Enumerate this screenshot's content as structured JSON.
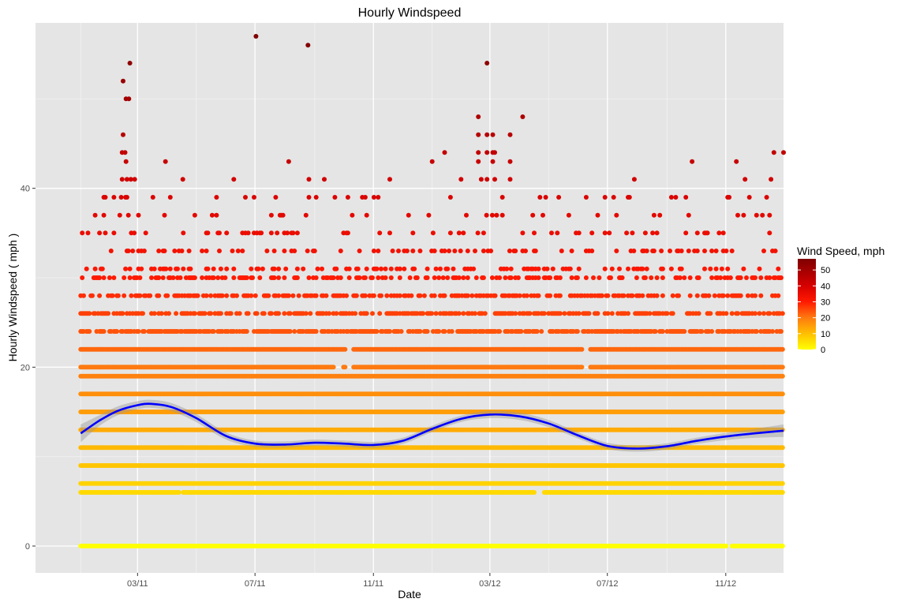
{
  "chart_data": {
    "type": "scatter",
    "title": "Hourly Windspeed",
    "xlabel": "Date",
    "ylabel": "Hourly Windspeed ( mph )",
    "x_range": [
      "2010-11-15",
      "2012-12-31"
    ],
    "ylim": [
      -3,
      58.5
    ],
    "x_ticks": [
      {
        "date": "2011-03-01",
        "label": "03/11"
      },
      {
        "date": "2011-07-01",
        "label": "07/11"
      },
      {
        "date": "2011-11-01",
        "label": "11/11"
      },
      {
        "date": "2012-03-01",
        "label": "03/12"
      },
      {
        "date": "2012-07-01",
        "label": "07/12"
      },
      {
        "date": "2012-11-01",
        "label": "11/12"
      }
    ],
    "x_minor_ticks": [
      "2011-01-01",
      "2011-05-01",
      "2011-09-01",
      "2012-01-01",
      "2012-05-01",
      "2012-09-01"
    ],
    "x_start_date": "2011-01-01",
    "x_end_date": "2012-12-31",
    "y_ticks": [
      0,
      20,
      40
    ],
    "y_minor_ticks": [
      10,
      30,
      50
    ],
    "grid": true,
    "series": [
      {
        "name": "Wind Speed, mph",
        "kind": "points",
        "dense_levels": [
          {
            "y": 0,
            "gaps": [
              [
                "2012-11-03",
                "2012-11-06"
              ]
            ]
          },
          {
            "y": 6,
            "gaps": [
              [
                "2011-04-14",
                "2011-04-16"
              ],
              [
                "2012-04-17",
                "2012-04-25"
              ]
            ]
          },
          {
            "y": 7,
            "gaps": []
          },
          {
            "y": 9,
            "gaps": []
          },
          {
            "y": 11,
            "gaps": []
          },
          {
            "y": 13,
            "gaps": []
          },
          {
            "y": 15,
            "gaps": []
          },
          {
            "y": 17,
            "gaps": []
          },
          {
            "y": 19,
            "gaps": []
          },
          {
            "y": 20,
            "gaps": [
              [
                "2011-09-22",
                "2011-09-30"
              ],
              [
                "2011-10-03",
                "2011-10-10"
              ],
              [
                "2012-06-06",
                "2012-06-12"
              ]
            ]
          },
          {
            "y": 22,
            "gaps": [
              [
                "2011-10-03",
                "2011-10-10"
              ],
              [
                "2012-06-06",
                "2012-06-12"
              ]
            ]
          }
        ],
        "sparse_levels": [
          {
            "y": 24,
            "density": 0.7
          },
          {
            "y": 26,
            "density": 0.55
          },
          {
            "y": 28,
            "density": 0.45
          },
          {
            "y": 30,
            "density": 0.32
          },
          {
            "y": 31,
            "density": 0.22
          },
          {
            "y": 33,
            "density": 0.2
          },
          {
            "y": 35,
            "density": 0.13
          },
          {
            "y": 37,
            "density": 0.07
          },
          {
            "y": 39,
            "density": 0.05
          }
        ],
        "outliers": [
          {
            "x": "2011-02-14",
            "y": 52
          },
          {
            "x": "2011-02-21",
            "y": 54
          },
          {
            "x": "2011-02-17",
            "y": 50
          },
          {
            "x": "2011-02-20",
            "y": 50
          },
          {
            "x": "2011-02-14",
            "y": 46
          },
          {
            "x": "2011-02-13",
            "y": 44
          },
          {
            "x": "2011-02-16",
            "y": 44
          },
          {
            "x": "2011-02-17",
            "y": 43
          },
          {
            "x": "2011-02-13",
            "y": 41
          },
          {
            "x": "2011-02-18",
            "y": 41
          },
          {
            "x": "2011-02-22",
            "y": 41
          },
          {
            "x": "2011-02-26",
            "y": 41
          },
          {
            "x": "2011-03-30",
            "y": 43
          },
          {
            "x": "2011-04-17",
            "y": 41
          },
          {
            "x": "2011-06-09",
            "y": 41
          },
          {
            "x": "2011-07-02",
            "y": 57
          },
          {
            "x": "2011-08-05",
            "y": 43
          },
          {
            "x": "2011-08-25",
            "y": 56
          },
          {
            "x": "2011-08-26",
            "y": 41
          },
          {
            "x": "2011-09-11",
            "y": 41
          },
          {
            "x": "2011-11-18",
            "y": 41
          },
          {
            "x": "2012-01-01",
            "y": 43
          },
          {
            "x": "2012-01-14",
            "y": 44
          },
          {
            "x": "2012-01-31",
            "y": 41
          },
          {
            "x": "2012-02-18",
            "y": 48
          },
          {
            "x": "2012-02-18",
            "y": 46
          },
          {
            "x": "2012-02-18",
            "y": 44
          },
          {
            "x": "2012-02-18",
            "y": 43
          },
          {
            "x": "2012-02-21",
            "y": 41
          },
          {
            "x": "2012-02-27",
            "y": 54
          },
          {
            "x": "2012-02-27",
            "y": 46
          },
          {
            "x": "2012-02-27",
            "y": 44
          },
          {
            "x": "2012-02-27",
            "y": 41
          },
          {
            "x": "2012-03-04",
            "y": 46
          },
          {
            "x": "2012-03-04",
            "y": 44
          },
          {
            "x": "2012-03-04",
            "y": 43
          },
          {
            "x": "2012-03-06",
            "y": 44
          },
          {
            "x": "2012-03-06",
            "y": 41
          },
          {
            "x": "2012-03-22",
            "y": 46
          },
          {
            "x": "2012-03-22",
            "y": 43
          },
          {
            "x": "2012-03-22",
            "y": 41
          },
          {
            "x": "2012-04-04",
            "y": 48
          },
          {
            "x": "2012-07-29",
            "y": 41
          },
          {
            "x": "2012-09-27",
            "y": 43
          },
          {
            "x": "2012-11-12",
            "y": 43
          },
          {
            "x": "2012-11-21",
            "y": 41
          },
          {
            "x": "2012-12-18",
            "y": 41
          },
          {
            "x": "2012-12-21",
            "y": 44
          },
          {
            "x": "2012-12-31",
            "y": 44
          }
        ]
      },
      {
        "name": "",
        "kind": "smooth",
        "color": "#0000ff",
        "band_color": "#999999",
        "points": [
          {
            "x": "2011-01-01",
            "y": 12.6
          },
          {
            "x": "2011-01-20",
            "y": 14.0
          },
          {
            "x": "2011-02-08",
            "y": 15.1
          },
          {
            "x": "2011-03-01",
            "y": 15.75
          },
          {
            "x": "2011-03-15",
            "y": 15.9
          },
          {
            "x": "2011-04-05",
            "y": 15.55
          },
          {
            "x": "2011-05-01",
            "y": 14.3
          },
          {
            "x": "2011-06-01",
            "y": 12.3
          },
          {
            "x": "2011-07-01",
            "y": 11.45
          },
          {
            "x": "2011-08-01",
            "y": 11.35
          },
          {
            "x": "2011-09-01",
            "y": 11.55
          },
          {
            "x": "2011-10-01",
            "y": 11.45
          },
          {
            "x": "2011-11-01",
            "y": 11.3
          },
          {
            "x": "2011-12-01",
            "y": 11.75
          },
          {
            "x": "2012-01-01",
            "y": 13.1
          },
          {
            "x": "2012-02-01",
            "y": 14.25
          },
          {
            "x": "2012-03-01",
            "y": 14.7
          },
          {
            "x": "2012-04-01",
            "y": 14.5
          },
          {
            "x": "2012-05-01",
            "y": 13.7
          },
          {
            "x": "2012-06-01",
            "y": 12.35
          },
          {
            "x": "2012-07-01",
            "y": 11.2
          },
          {
            "x": "2012-08-01",
            "y": 10.9
          },
          {
            "x": "2012-09-01",
            "y": 11.15
          },
          {
            "x": "2012-10-01",
            "y": 11.75
          },
          {
            "x": "2012-11-01",
            "y": 12.25
          },
          {
            "x": "2012-12-01",
            "y": 12.6
          },
          {
            "x": "2012-12-31",
            "y": 12.9
          }
        ],
        "band_halfwidth": [
          1.0,
          0.6,
          0.5,
          0.45,
          0.45,
          0.45,
          0.45,
          0.4,
          0.35,
          0.35,
          0.35,
          0.35,
          0.35,
          0.35,
          0.35,
          0.35,
          0.4,
          0.4,
          0.4,
          0.35,
          0.35,
          0.35,
          0.35,
          0.35,
          0.4,
          0.5,
          0.7
        ]
      }
    ],
    "legend": {
      "title": "Wind Speed, mph",
      "position": "right",
      "range": [
        0,
        57
      ],
      "ticks": [
        0,
        10,
        20,
        30,
        40,
        50
      ],
      "colors": [
        {
          "at": 0,
          "color": "#ffff00"
        },
        {
          "at": 10,
          "color": "#ffc000"
        },
        {
          "at": 20,
          "color": "#ff7a10"
        },
        {
          "at": 30,
          "color": "#ff1a00"
        },
        {
          "at": 40,
          "color": "#d60000"
        },
        {
          "at": 57,
          "color": "#7f0000"
        }
      ]
    }
  }
}
